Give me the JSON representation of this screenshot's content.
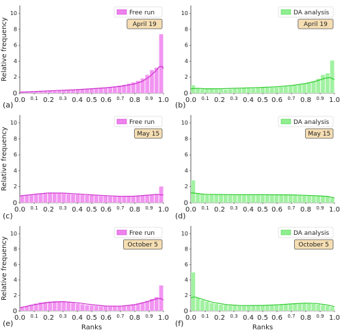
{
  "chart_data": [
    {
      "type": "bar",
      "panel_label": "(a)",
      "legend": "Free run",
      "date": "April 19",
      "color": "#ee82ee",
      "line_color": "#cc33cc",
      "xlabel": "",
      "ylabel": "Relative frequency",
      "xlim": [
        0.0,
        1.0
      ],
      "ylim": [
        0,
        11
      ],
      "xticks": [
        "0.0",
        "0.1",
        "0.2",
        "0.3",
        "0.4",
        "0.5",
        "0.6",
        "0.7",
        "0.8",
        "0.9",
        "1.0"
      ],
      "yticks": [
        "0",
        "2",
        "4",
        "6",
        "8",
        "10"
      ],
      "values": [
        0.1,
        0.15,
        0.2,
        0.22,
        0.25,
        0.28,
        0.3,
        0.32,
        0.35,
        0.38,
        0.4,
        0.42,
        0.45,
        0.48,
        0.5,
        0.55,
        0.6,
        0.65,
        0.7,
        0.78,
        0.85,
        0.95,
        1.05,
        1.2,
        1.35,
        1.55,
        1.85,
        2.3,
        2.9,
        3.2,
        7.4
      ],
      "kde": [
        [
          0,
          0.12
        ],
        [
          0.1,
          0.2
        ],
        [
          0.2,
          0.28
        ],
        [
          0.3,
          0.36
        ],
        [
          0.4,
          0.44
        ],
        [
          0.5,
          0.55
        ],
        [
          0.6,
          0.68
        ],
        [
          0.7,
          0.85
        ],
        [
          0.8,
          1.15
        ],
        [
          0.85,
          1.45
        ],
        [
          0.9,
          2.0
        ],
        [
          0.95,
          2.85
        ],
        [
          0.97,
          3.3
        ],
        [
          0.99,
          3.35
        ],
        [
          1.0,
          3.1
        ]
      ]
    },
    {
      "type": "bar",
      "panel_label": "(b)",
      "legend": "DA analysis",
      "date": "April 19",
      "color": "#90ee90",
      "line_color": "#33cc33",
      "xlabel": "",
      "ylabel": "",
      "xlim": [
        0.0,
        1.0
      ],
      "ylim": [
        0,
        11
      ],
      "xticks": [
        "0.0",
        "0.1",
        "0.2",
        "0.3",
        "0.4",
        "0.5",
        "0.6",
        "0.7",
        "0.8",
        "0.9",
        "1.0"
      ],
      "yticks": [
        "0",
        "2",
        "4",
        "6",
        "8",
        "10"
      ],
      "values": [
        1.0,
        0.55,
        0.5,
        0.55,
        0.6,
        0.5,
        0.48,
        0.45,
        0.5,
        0.55,
        0.55,
        0.6,
        0.6,
        0.6,
        0.65,
        0.7,
        0.7,
        0.72,
        0.75,
        0.8,
        0.85,
        0.9,
        1.0,
        1.1,
        1.2,
        1.35,
        1.5,
        1.8,
        2.3,
        2.5,
        4.1
      ],
      "kde": [
        [
          0,
          0.55
        ],
        [
          0.05,
          0.6
        ],
        [
          0.1,
          0.55
        ],
        [
          0.2,
          0.55
        ],
        [
          0.3,
          0.6
        ],
        [
          0.4,
          0.65
        ],
        [
          0.5,
          0.72
        ],
        [
          0.6,
          0.8
        ],
        [
          0.7,
          0.95
        ],
        [
          0.8,
          1.2
        ],
        [
          0.88,
          1.55
        ],
        [
          0.93,
          1.85
        ],
        [
          0.97,
          1.95
        ],
        [
          1.0,
          1.7
        ]
      ]
    },
    {
      "type": "bar",
      "panel_label": "(c)",
      "legend": "Free run",
      "date": "May 15",
      "color": "#ee82ee",
      "line_color": "#cc33cc",
      "xlabel": "",
      "ylabel": "Relative frequency",
      "xlim": [
        0.0,
        1.0
      ],
      "ylim": [
        0,
        11
      ],
      "xticks": [
        "0.0",
        "0.1",
        "0.2",
        "0.3",
        "0.4",
        "0.5",
        "0.6",
        "0.7",
        "0.8",
        "0.9",
        "1.0"
      ],
      "yticks": [
        "0",
        "2",
        "4",
        "6",
        "8",
        "10"
      ],
      "values": [
        0.9,
        0.95,
        1.05,
        1.15,
        1.2,
        1.25,
        1.25,
        1.2,
        1.2,
        1.15,
        1.1,
        1.05,
        1.05,
        1.0,
        0.95,
        0.95,
        0.9,
        0.85,
        0.85,
        0.8,
        0.8,
        0.8,
        0.8,
        0.8,
        0.85,
        0.85,
        0.9,
        0.95,
        1.0,
        1.05,
        2.05
      ],
      "kde": [
        [
          0,
          0.85
        ],
        [
          0.1,
          1.05
        ],
        [
          0.2,
          1.22
        ],
        [
          0.3,
          1.2
        ],
        [
          0.4,
          1.1
        ],
        [
          0.5,
          0.98
        ],
        [
          0.6,
          0.88
        ],
        [
          0.7,
          0.8
        ],
        [
          0.8,
          0.82
        ],
        [
          0.9,
          0.95
        ],
        [
          0.95,
          1.05
        ],
        [
          1.0,
          0.95
        ]
      ]
    },
    {
      "type": "bar",
      "panel_label": "(d)",
      "legend": "DA analysis",
      "date": "May 15",
      "color": "#90ee90",
      "line_color": "#33cc33",
      "xlabel": "",
      "ylabel": "",
      "xlim": [
        0.0,
        1.0
      ],
      "ylim": [
        0,
        11
      ],
      "xticks": [
        "0.0",
        "0.1",
        "0.2",
        "0.3",
        "0.4",
        "0.5",
        "0.6",
        "0.7",
        "0.8",
        "0.9",
        "1.0"
      ],
      "yticks": [
        "0",
        "2",
        "4",
        "6",
        "8",
        "10"
      ],
      "values": [
        2.8,
        1.2,
        1.1,
        1.05,
        1.0,
        1.0,
        1.0,
        1.0,
        0.95,
        0.95,
        1.0,
        1.0,
        1.0,
        1.0,
        0.95,
        0.95,
        1.0,
        1.0,
        1.0,
        1.0,
        1.0,
        0.95,
        0.95,
        0.9,
        0.9,
        0.9,
        0.85,
        0.85,
        0.8,
        0.75,
        0.6
      ],
      "kde": [
        [
          0,
          1.25
        ],
        [
          0.05,
          1.15
        ],
        [
          0.1,
          1.05
        ],
        [
          0.3,
          1.0
        ],
        [
          0.5,
          1.0
        ],
        [
          0.7,
          0.98
        ],
        [
          0.8,
          0.92
        ],
        [
          0.9,
          0.85
        ],
        [
          0.95,
          0.78
        ],
        [
          1.0,
          0.6
        ]
      ]
    },
    {
      "type": "bar",
      "panel_label": "(e)",
      "legend": "Free run",
      "date": "October 5",
      "color": "#ee82ee",
      "line_color": "#cc33cc",
      "xlabel": "Ranks",
      "ylabel": "Relative frequency",
      "xlim": [
        0.0,
        1.0
      ],
      "ylim": [
        0,
        11
      ],
      "xticks": [
        "0.0",
        "0.1",
        "0.2",
        "0.3",
        "0.4",
        "0.5",
        "0.6",
        "0.7",
        "0.8",
        "0.9",
        "1.0"
      ],
      "yticks": [
        "0",
        "2",
        "4",
        "6",
        "8",
        "10"
      ],
      "values": [
        0.45,
        0.6,
        0.8,
        0.95,
        1.1,
        1.15,
        1.2,
        1.25,
        1.25,
        1.2,
        1.15,
        1.05,
        0.95,
        0.85,
        0.75,
        0.7,
        0.65,
        0.6,
        0.58,
        0.58,
        0.6,
        0.62,
        0.68,
        0.75,
        0.85,
        0.95,
        1.1,
        1.3,
        1.55,
        1.8,
        3.3
      ],
      "kde": [
        [
          0,
          0.4
        ],
        [
          0.1,
          0.8
        ],
        [
          0.2,
          1.1
        ],
        [
          0.3,
          1.2
        ],
        [
          0.4,
          1.05
        ],
        [
          0.5,
          0.8
        ],
        [
          0.6,
          0.62
        ],
        [
          0.7,
          0.6
        ],
        [
          0.8,
          0.8
        ],
        [
          0.88,
          1.15
        ],
        [
          0.95,
          1.55
        ],
        [
          0.98,
          1.6
        ],
        [
          1.0,
          1.4
        ]
      ]
    },
    {
      "type": "bar",
      "panel_label": "(f)",
      "legend": "DA analysis",
      "date": "October 5",
      "color": "#90ee90",
      "line_color": "#33cc33",
      "xlabel": "Ranks",
      "ylabel": "",
      "xlim": [
        0.0,
        1.0
      ],
      "ylim": [
        0,
        11
      ],
      "xticks": [
        "0.0",
        "0.1",
        "0.2",
        "0.3",
        "0.4",
        "0.5",
        "0.6",
        "0.7",
        "0.8",
        "0.9",
        "1.0"
      ],
      "yticks": [
        "0",
        "2",
        "4",
        "6",
        "8",
        "10"
      ],
      "values": [
        5.0,
        1.7,
        1.4,
        1.2,
        1.0,
        0.9,
        0.8,
        0.75,
        0.7,
        0.7,
        0.65,
        0.65,
        0.65,
        0.7,
        0.7,
        0.7,
        0.72,
        0.75,
        0.8,
        0.85,
        0.9,
        0.95,
        1.0,
        1.0,
        1.0,
        0.95,
        0.9,
        0.85,
        0.75,
        0.65,
        0.5
      ],
      "kde": [
        [
          0,
          1.7
        ],
        [
          0.03,
          1.8
        ],
        [
          0.08,
          1.5
        ],
        [
          0.15,
          1.1
        ],
        [
          0.25,
          0.8
        ],
        [
          0.35,
          0.68
        ],
        [
          0.5,
          0.7
        ],
        [
          0.6,
          0.78
        ],
        [
          0.7,
          0.9
        ],
        [
          0.8,
          1.0
        ],
        [
          0.88,
          0.95
        ],
        [
          0.95,
          0.75
        ],
        [
          1.0,
          0.55
        ]
      ]
    }
  ]
}
